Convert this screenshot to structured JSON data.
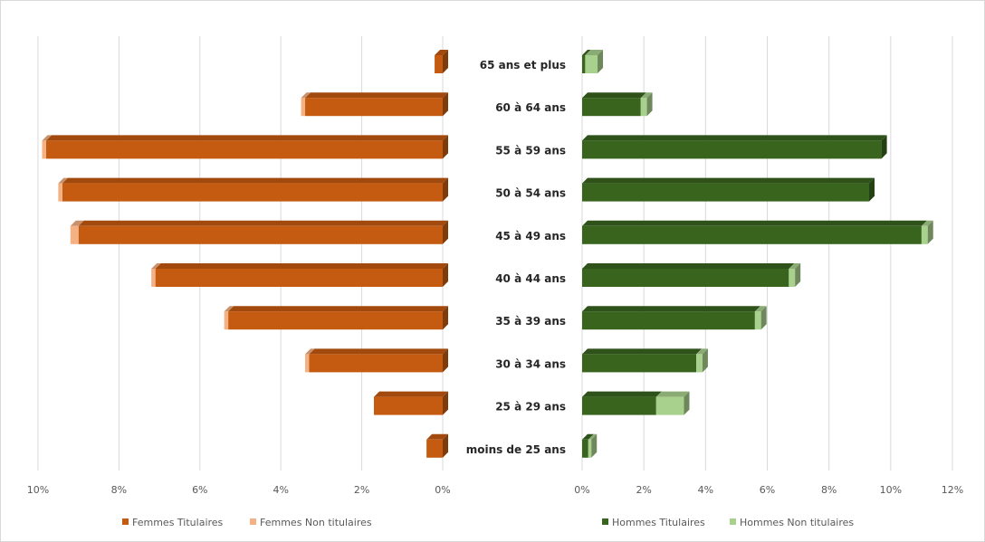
{
  "chart_data": {
    "type": "bar",
    "orientation": "horizontal",
    "layout": "population-pyramid",
    "categories": [
      "moins de 25 ans",
      "25 à 29 ans",
      "30 à 34 ans",
      "35 à 39 ans",
      "40 à 44 ans",
      "45 à 49 ans",
      "50 à 54 ans",
      "55 à 59 ans",
      "60 à 64 ans",
      "65 ans et plus"
    ],
    "stacked": true,
    "left_panel": {
      "xlim": [
        0,
        10
      ],
      "ticks": [
        "10%",
        "8%",
        "6%",
        "4%",
        "2%",
        "0%"
      ],
      "tick_values": [
        10,
        8,
        6,
        4,
        2,
        0
      ],
      "series": [
        {
          "name": "Femmes Titulaires",
          "color": "#c55a11",
          "values": [
            0.4,
            1.7,
            3.3,
            5.3,
            7.1,
            9.0,
            9.4,
            9.8,
            3.4,
            0.2
          ]
        },
        {
          "name": "Femmes Non titulaires",
          "color": "#f4b183",
          "values": [
            0.0,
            0.0,
            0.1,
            0.1,
            0.1,
            0.2,
            0.1,
            0.1,
            0.1,
            0.0
          ]
        }
      ]
    },
    "right_panel": {
      "xlim": [
        0,
        12
      ],
      "ticks": [
        "0%",
        "2%",
        "4%",
        "6%",
        "8%",
        "10%",
        "12%"
      ],
      "tick_values": [
        0,
        2,
        4,
        6,
        8,
        10,
        12
      ],
      "series": [
        {
          "name": "Hommes Titulaires",
          "color": "#38641e",
          "values": [
            0.2,
            2.4,
            3.7,
            5.6,
            6.7,
            11.0,
            9.3,
            9.7,
            1.9,
            0.1
          ]
        },
        {
          "name": "Hommes Non titulaires",
          "color": "#a9d18e",
          "values": [
            0.1,
            0.9,
            0.2,
            0.2,
            0.2,
            0.2,
            0.0,
            0.0,
            0.2,
            0.4
          ]
        }
      ]
    },
    "grid": true,
    "legend": "bottom",
    "title": "",
    "xlabel": "",
    "ylabel": ""
  }
}
